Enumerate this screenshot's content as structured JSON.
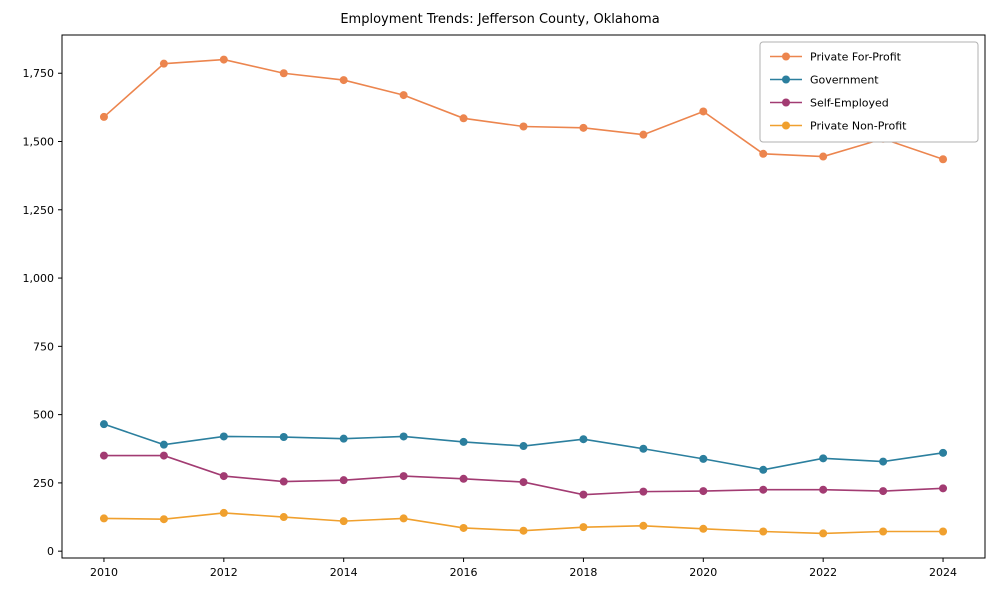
{
  "chart_data": {
    "type": "line",
    "title": "Employment Trends: Jefferson County, Oklahoma",
    "xlabel": "",
    "ylabel": "",
    "x": [
      2010,
      2011,
      2012,
      2013,
      2014,
      2015,
      2016,
      2017,
      2018,
      2019,
      2020,
      2021,
      2022,
      2023,
      2024
    ],
    "series": [
      {
        "name": "Private For-Profit",
        "color": "#ec854e",
        "values": [
          1590,
          1785,
          1800,
          1750,
          1725,
          1670,
          1585,
          1555,
          1550,
          1525,
          1610,
          1455,
          1445,
          1510,
          1435
        ]
      },
      {
        "name": "Government",
        "color": "#2b7f9e",
        "values": [
          465,
          390,
          420,
          418,
          412,
          420,
          400,
          385,
          410,
          375,
          338,
          298,
          340,
          328,
          360
        ]
      },
      {
        "name": "Self-Employed",
        "color": "#a23b72",
        "values": [
          350,
          350,
          275,
          255,
          260,
          275,
          265,
          253,
          207,
          218,
          220,
          225,
          225,
          220,
          230
        ]
      },
      {
        "name": "Private Non-Profit",
        "color": "#f0a02e",
        "values": [
          120,
          117,
          140,
          125,
          110,
          120,
          85,
          75,
          88,
          93,
          82,
          72,
          65,
          72,
          72
        ]
      }
    ],
    "xticks": [
      2010,
      2012,
      2014,
      2016,
      2018,
      2020,
      2022,
      2024
    ],
    "yticks": [
      0,
      250,
      500,
      750,
      1000,
      1250,
      1500,
      1750
    ],
    "xlim": [
      2009.3,
      2024.7
    ],
    "ylim": [
      -25,
      1890
    ],
    "grid": false,
    "legend_position": "upper right",
    "axis_color": "#000000",
    "background": "#ffffff"
  }
}
